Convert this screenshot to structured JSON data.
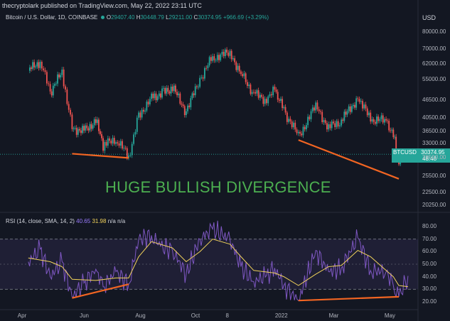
{
  "publisher": "thecryptolark published on TradingView.com, May 22, 2022 23:11 UTC",
  "currency": "USD",
  "legend": {
    "symbol": "Bitcoin / U.S. Dollar, 1D, COINBASE",
    "open_label": "O",
    "open": "29407.40",
    "high_label": "H",
    "high": "30448.79",
    "low_label": "L",
    "low": "29211.00",
    "close_label": "C",
    "close": "30374.95",
    "change": "+966.69 (+3.29%)"
  },
  "rsi_legend": {
    "label": "RSI (14, close, SMA, 14, 2)",
    "rsi": "40.65",
    "sma": "31.98",
    "na1": "n/a",
    "na2": "n/a"
  },
  "price_tag": {
    "symbol": "BTCUSD",
    "price": "30374.95",
    "countdown": "48:48"
  },
  "annotation": "HUGE BULLISH DIVERGENCE",
  "colors": {
    "background": "#131722",
    "up": "#26a69a",
    "down": "#ef5350",
    "rsi": "#7e57c2",
    "rsi_sma": "#f2d35b",
    "divergence": "#f26522",
    "callout": "#4caf50"
  },
  "chart_data": [
    {
      "type": "candlestick",
      "title": "Bitcoin / U.S. Dollar, 1D, COINBASE",
      "ylabel": "USD",
      "y_scale": "log",
      "y_ticks": [
        "80000.00",
        "70000.00",
        "62000.00",
        "55000.00",
        "46500.00",
        "40500.00",
        "36500.00",
        "33000.00",
        "29500.00",
        "25500.00",
        "22500.00",
        "20250.00"
      ],
      "x_ticks": [
        "Apr",
        "Jun",
        "Aug",
        "Oct",
        "8",
        "2022",
        "Mar",
        "May"
      ],
      "ylim": [
        19500,
        88000
      ],
      "close_series": [
        {
          "x": "2021-04-01",
          "y": 58800
        },
        {
          "x": "2021-04-14",
          "y": 63500
        },
        {
          "x": "2021-04-25",
          "y": 49500
        },
        {
          "x": "2021-05-08",
          "y": 58000
        },
        {
          "x": "2021-05-19",
          "y": 37500
        },
        {
          "x": "2021-06-01",
          "y": 36500
        },
        {
          "x": "2021-06-14",
          "y": 39800
        },
        {
          "x": "2021-06-22",
          "y": 32500
        },
        {
          "x": "2021-07-06",
          "y": 34200
        },
        {
          "x": "2021-07-20",
          "y": 29800
        },
        {
          "x": "2021-07-31",
          "y": 41500
        },
        {
          "x": "2021-08-14",
          "y": 47200
        },
        {
          "x": "2021-08-24",
          "y": 49500
        },
        {
          "x": "2021-09-06",
          "y": 51500
        },
        {
          "x": "2021-09-21",
          "y": 42500
        },
        {
          "x": "2021-10-06",
          "y": 55000
        },
        {
          "x": "2021-10-20",
          "y": 65500
        },
        {
          "x": "2021-11-08",
          "y": 67500
        },
        {
          "x": "2021-11-20",
          "y": 58000
        },
        {
          "x": "2021-12-04",
          "y": 49000
        },
        {
          "x": "2021-12-18",
          "y": 46500
        },
        {
          "x": "2021-12-27",
          "y": 50500
        },
        {
          "x": "2022-01-06",
          "y": 43000
        },
        {
          "x": "2022-01-22",
          "y": 35000
        },
        {
          "x": "2022-02-10",
          "y": 44500
        },
        {
          "x": "2022-02-24",
          "y": 37500
        },
        {
          "x": "2022-03-10",
          "y": 39500
        },
        {
          "x": "2022-03-28",
          "y": 47500
        },
        {
          "x": "2022-04-11",
          "y": 40000
        },
        {
          "x": "2022-04-28",
          "y": 39500
        },
        {
          "x": "2022-05-06",
          "y": 36000
        },
        {
          "x": "2022-05-12",
          "y": 28500
        },
        {
          "x": "2022-05-22",
          "y": 30374.95
        }
      ],
      "annotations": [
        "HUGE BULLISH DIVERGENCE"
      ],
      "divergence_lines": [
        {
          "from": {
            "x": "2021-05-19",
            "y": 30500
          },
          "to": {
            "x": "2021-07-20",
            "y": 29500
          }
        },
        {
          "from": {
            "x": "2022-01-22",
            "y": 34000
          },
          "to": {
            "x": "2022-05-12",
            "y": 25000
          }
        }
      ]
    },
    {
      "type": "line",
      "title": "RSI (14, close, SMA, 14, 2)",
      "y_ticks": [
        "80.00",
        "70.00",
        "60.00",
        "50.00",
        "40.00",
        "30.00",
        "20.00"
      ],
      "ylim": [
        16,
        84
      ],
      "bands": {
        "upper": 70,
        "lower": 30
      },
      "series": [
        {
          "name": "RSI",
          "values": [
            {
              "x": "2021-04-01",
              "y": 52
            },
            {
              "x": "2021-04-14",
              "y": 62
            },
            {
              "x": "2021-04-25",
              "y": 40
            },
            {
              "x": "2021-05-08",
              "y": 52
            },
            {
              "x": "2021-05-19",
              "y": 24
            },
            {
              "x": "2021-06-01",
              "y": 35
            },
            {
              "x": "2021-06-14",
              "y": 46
            },
            {
              "x": "2021-06-22",
              "y": 32
            },
            {
              "x": "2021-07-06",
              "y": 44
            },
            {
              "x": "2021-07-20",
              "y": 34
            },
            {
              "x": "2021-07-31",
              "y": 70
            },
            {
              "x": "2021-08-14",
              "y": 73
            },
            {
              "x": "2021-08-24",
              "y": 64
            },
            {
              "x": "2021-09-06",
              "y": 61
            },
            {
              "x": "2021-09-21",
              "y": 42
            },
            {
              "x": "2021-10-06",
              "y": 70
            },
            {
              "x": "2021-10-20",
              "y": 78
            },
            {
              "x": "2021-11-08",
              "y": 70
            },
            {
              "x": "2021-11-20",
              "y": 48
            },
            {
              "x": "2021-12-04",
              "y": 36
            },
            {
              "x": "2021-12-18",
              "y": 41
            },
            {
              "x": "2021-12-27",
              "y": 47
            },
            {
              "x": "2022-01-06",
              "y": 33
            },
            {
              "x": "2022-01-22",
              "y": 21
            },
            {
              "x": "2022-02-10",
              "y": 61
            },
            {
              "x": "2022-02-24",
              "y": 44
            },
            {
              "x": "2022-03-10",
              "y": 47
            },
            {
              "x": "2022-03-28",
              "y": 71
            },
            {
              "x": "2022-04-11",
              "y": 45
            },
            {
              "x": "2022-04-28",
              "y": 44
            },
            {
              "x": "2022-05-06",
              "y": 33
            },
            {
              "x": "2022-05-12",
              "y": 24
            },
            {
              "x": "2022-05-22",
              "y": 40.65
            }
          ]
        },
        {
          "name": "SMA",
          "values": [
            {
              "x": "2021-04-01",
              "y": 55
            },
            {
              "x": "2021-04-25",
              "y": 52
            },
            {
              "x": "2021-05-08",
              "y": 48
            },
            {
              "x": "2021-05-19",
              "y": 38
            },
            {
              "x": "2021-06-14",
              "y": 37
            },
            {
              "x": "2021-07-06",
              "y": 39
            },
            {
              "x": "2021-07-20",
              "y": 39
            },
            {
              "x": "2021-07-31",
              "y": 56
            },
            {
              "x": "2021-08-14",
              "y": 68
            },
            {
              "x": "2021-09-06",
              "y": 63
            },
            {
              "x": "2021-09-21",
              "y": 52
            },
            {
              "x": "2021-10-06",
              "y": 60
            },
            {
              "x": "2021-10-20",
              "y": 70
            },
            {
              "x": "2021-11-08",
              "y": 66
            },
            {
              "x": "2021-11-20",
              "y": 56
            },
            {
              "x": "2021-12-04",
              "y": 45
            },
            {
              "x": "2021-12-27",
              "y": 43
            },
            {
              "x": "2022-01-06",
              "y": 40
            },
            {
              "x": "2022-01-22",
              "y": 33
            },
            {
              "x": "2022-02-10",
              "y": 42
            },
            {
              "x": "2022-02-24",
              "y": 48
            },
            {
              "x": "2022-03-10",
              "y": 49
            },
            {
              "x": "2022-03-28",
              "y": 61
            },
            {
              "x": "2022-04-11",
              "y": 56
            },
            {
              "x": "2022-04-28",
              "y": 45
            },
            {
              "x": "2022-05-06",
              "y": 40
            },
            {
              "x": "2022-05-12",
              "y": 33
            },
            {
              "x": "2022-05-22",
              "y": 31.98
            }
          ]
        }
      ],
      "divergence_lines": [
        {
          "from": {
            "x": "2021-05-19",
            "y": 23
          },
          "to": {
            "x": "2021-07-20",
            "y": 34
          }
        },
        {
          "from": {
            "x": "2022-01-22",
            "y": 21
          },
          "to": {
            "x": "2022-05-12",
            "y": 24
          }
        }
      ]
    }
  ]
}
